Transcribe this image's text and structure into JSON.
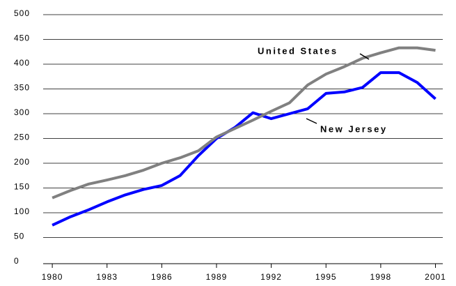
{
  "chart_data": {
    "type": "line",
    "x": [
      1980,
      1981,
      1982,
      1983,
      1984,
      1985,
      1986,
      1987,
      1988,
      1989,
      1990,
      1991,
      1992,
      1993,
      1994,
      1995,
      1996,
      1997,
      1998,
      1999,
      2000,
      2001
    ],
    "series": [
      {
        "name": "United States",
        "color": "#808080",
        "values": [
          130,
          145,
          158,
          166,
          175,
          186,
          200,
          211,
          225,
          253,
          270,
          287,
          305,
          322,
          358,
          380,
          395,
          412,
          423,
          433,
          433,
          428
        ]
      },
      {
        "name": "New Jersey",
        "color": "#0000ff",
        "values": [
          75,
          92,
          106,
          122,
          136,
          147,
          155,
          175,
          215,
          250,
          272,
          302,
          290,
          300,
          310,
          341,
          344,
          353,
          383,
          383,
          363,
          330
        ]
      }
    ],
    "xlim": [
      1979.5,
      2001.4
    ],
    "xticks": [
      1980,
      1983,
      1986,
      1989,
      1992,
      1995,
      1998,
      2001
    ],
    "ylim": [
      0,
      500
    ],
    "yticks": [
      0,
      50,
      100,
      150,
      200,
      250,
      300,
      350,
      400,
      450,
      500
    ],
    "grid": true
  }
}
